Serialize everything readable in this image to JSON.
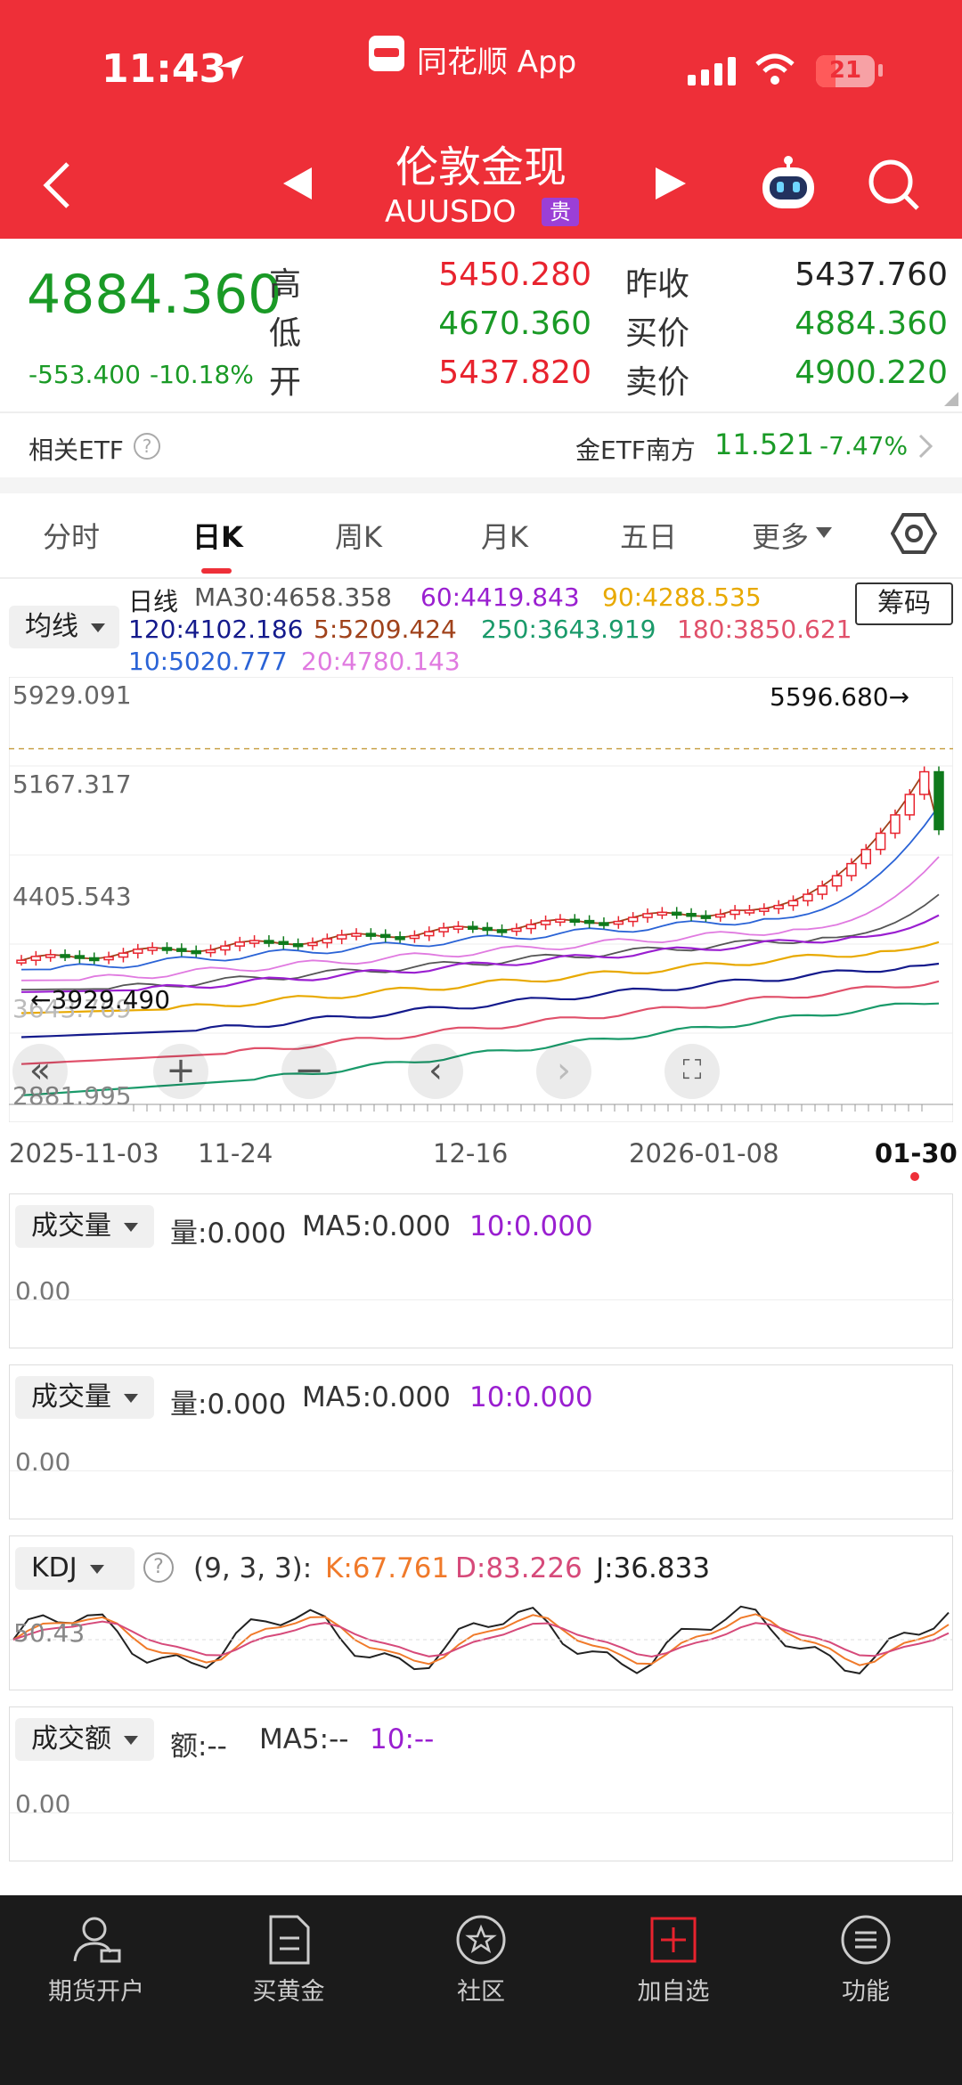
{
  "status_bar": {
    "time": "11:43",
    "app_name": "同花顺 App",
    "battery": "21"
  },
  "header": {
    "title": "伦敦金现",
    "code": "AUUSDO",
    "badge": "贵"
  },
  "quote": {
    "price": "4884.360",
    "change": "-553.400",
    "change_pct": "-10.18%",
    "high_label": "高",
    "high": "5450.280",
    "low_label": "低",
    "low": "4670.360",
    "open_label": "开",
    "open": "5437.820",
    "prev_close_label": "昨收",
    "prev_close": "5437.760",
    "bid_label": "买价",
    "bid": "4884.360",
    "ask_label": "卖价",
    "ask": "4900.220"
  },
  "etf": {
    "label": "相关ETF",
    "name": "金ETF南方",
    "price": "11.521",
    "change": "-7.47%"
  },
  "tabs": [
    "分时",
    "日K",
    "周K",
    "月K",
    "五日",
    "更多"
  ],
  "active_tab": 1,
  "indicator": {
    "selector": "均线",
    "chip_button": "筹码",
    "period_label": "日线",
    "ma": [
      {
        "text": "MA30:4658.358",
        "color": "#555555"
      },
      {
        "text": "60:4419.843",
        "color": "#9a1fd0"
      },
      {
        "text": "90:4288.535",
        "color": "#e8a900"
      },
      {
        "text": "120:4102.186",
        "color": "#141a8c"
      },
      {
        "text": "5:5209.424",
        "color": "#a0421b"
      },
      {
        "text": "250:3643.919",
        "color": "#1a9a6a"
      },
      {
        "text": "180:3850.621",
        "color": "#e0506a"
      },
      {
        "text": "10:5020.777",
        "color": "#2a63d6"
      },
      {
        "text": "20:4780.143",
        "color": "#e07ae0"
      }
    ]
  },
  "chart_data": {
    "type": "candlestick",
    "y_ticks": [
      "5929.091",
      "5167.317",
      "4405.543",
      "3643.769",
      "2881.995"
    ],
    "x_ticks": [
      "2025-11-03",
      "11-24",
      "12-16",
      "2026-01-08",
      "01-30"
    ],
    "max_label": "5596.680→",
    "min_label": "←3929.490",
    "ylim": [
      2881.995,
      5929.091
    ]
  },
  "panels": [
    {
      "selector": "成交量",
      "stat1": "量:0.000",
      "stat2": "MA5:0.000",
      "stat3": "10:0.000",
      "zero": "0.00"
    },
    {
      "selector": "成交量",
      "stat1": "量:0.000",
      "stat2": "MA5:0.000",
      "stat3": "10:0.000",
      "zero": "0.00"
    },
    {
      "selector": "KDJ",
      "params": "(9, 3, 3):",
      "k": "K:67.761",
      "d": "D:83.226",
      "j": "J:36.833",
      "level": "50.43"
    },
    {
      "selector": "成交额",
      "stat1": "额:--",
      "stat2": "MA5:--",
      "stat3": "10:--",
      "zero": "0.00"
    }
  ],
  "bottom_nav": [
    {
      "label": "期货开户",
      "icon": "account-icon"
    },
    {
      "label": "买黄金",
      "icon": "document-icon"
    },
    {
      "label": "社区",
      "icon": "community-icon"
    },
    {
      "label": "加自选",
      "icon": "add-watchlist-icon"
    },
    {
      "label": "功能",
      "icon": "menu-icon"
    }
  ]
}
